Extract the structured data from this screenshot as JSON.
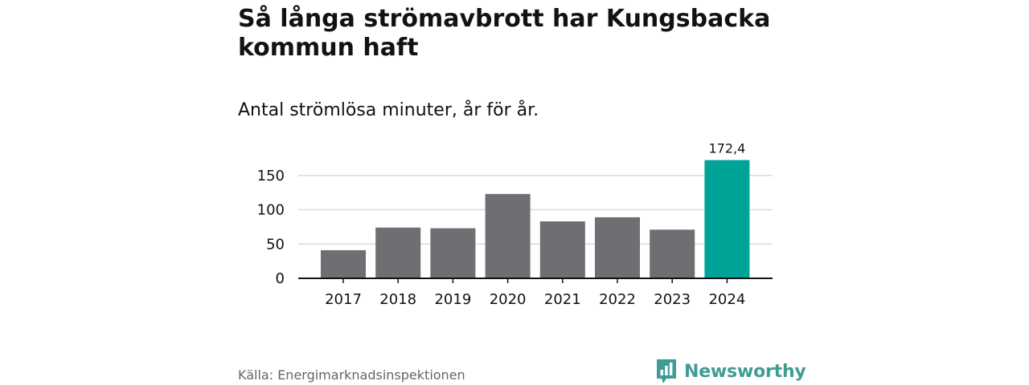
{
  "title": "Så långa strömavbrott har Kungsbacka kommun haft",
  "subtitle": "Antal strömlösa minuter, år för år.",
  "source": "Källa: Energimarknadsinspektionen",
  "brand": {
    "name": "Newsworthy",
    "color": "#3f9c95"
  },
  "chart_data": {
    "type": "bar",
    "categories": [
      "2017",
      "2018",
      "2019",
      "2020",
      "2021",
      "2022",
      "2023",
      "2024"
    ],
    "values": [
      41,
      74,
      73,
      123,
      83,
      89,
      71,
      172.4
    ],
    "highlight": {
      "index": 7,
      "label": "172,4"
    },
    "yticks": [
      0,
      50,
      100,
      150
    ],
    "ylim": [
      0,
      180
    ],
    "xlabel": "",
    "ylabel": "",
    "grid": true,
    "colors": {
      "default": "#6f6e73",
      "highlight": "#00a398",
      "grid": "#d9d9d9",
      "axis": "#121212"
    }
  }
}
